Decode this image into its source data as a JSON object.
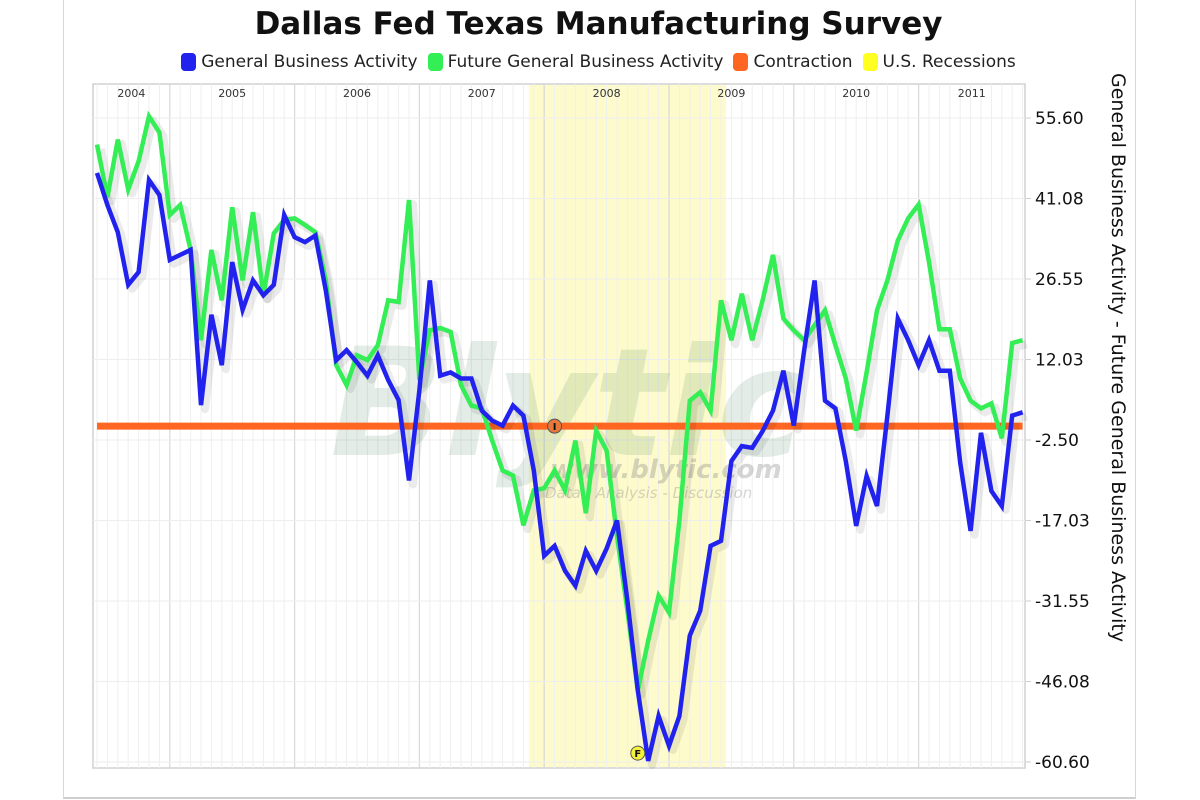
{
  "chart_data": {
    "type": "line",
    "title": "Dallas Fed Texas Manufacturing Survey",
    "ylabel": "General Business Activity  - Future General Business Activity",
    "xlabel": "",
    "ylim": [
      -60.6,
      55.6
    ],
    "y_ticks": [
      "55.60",
      "41.08",
      "26.55",
      "12.03",
      "-2.50",
      "-17.03",
      "-31.55",
      "-46.08",
      "-60.60"
    ],
    "y_tick_values": [
      55.6,
      41.08,
      26.55,
      12.03,
      -2.5,
      -17.03,
      -31.55,
      -46.08,
      -60.6
    ],
    "x_ticks": [
      "2004",
      "2005",
      "2006",
      "2007",
      "2008",
      "2009",
      "2010",
      "2011"
    ],
    "x_start": "2004-06",
    "x_frequency": "monthly",
    "grid": true,
    "legend_position": "top",
    "legend": [
      {
        "label": "General Business Activity",
        "color": "#2222ee"
      },
      {
        "label": "Future General Business Activity",
        "color": "#33ee55"
      },
      {
        "label": "Contraction",
        "color": "#ff6622"
      },
      {
        "label": "U.S. Recessions",
        "color": "#ffff22"
      }
    ],
    "series": [
      {
        "name": "General Business Activity",
        "color": "#2222ee",
        "values": [
          45.7,
          39.9,
          35.0,
          25.5,
          27.8,
          44.4,
          41.7,
          30.0,
          30.9,
          31.8,
          3.8,
          20.1,
          11.0,
          29.6,
          21.0,
          26.3,
          23.6,
          25.5,
          38.1,
          34.1,
          33.2,
          34.4,
          24.5,
          11.9,
          13.7,
          11.5,
          9.1,
          12.8,
          8.3,
          4.7,
          -9.8,
          6.5,
          26.3,
          9.1,
          9.7,
          8.6,
          8.6,
          2.8,
          1.0,
          0.1,
          3.7,
          1.9,
          -8.0,
          -23.4,
          -21.6,
          -26.1,
          -28.8,
          -22.5,
          -26.1,
          -22.1,
          -17.0,
          -31.5,
          -47.7,
          -60.4,
          -52.3,
          -57.7,
          -52.3,
          -37.8,
          -33.3,
          -21.6,
          -20.7,
          -6.3,
          -3.6,
          -3.9,
          -0.9,
          2.8,
          10.0,
          0.1,
          13.7,
          26.3,
          4.6,
          3.2,
          -6.3,
          -18.0,
          -9.0,
          -14.4,
          1.9,
          19.4,
          15.5,
          11.0,
          15.5,
          10.0,
          10.0,
          -6.6,
          -18.9,
          -1.2,
          -11.7,
          -14.4,
          1.9,
          2.5
        ]
      },
      {
        "name": "Future General Business Activity",
        "color": "#33ee55",
        "values": [
          50.8,
          41.3,
          51.7,
          42.7,
          47.8,
          55.9,
          53.0,
          38.1,
          39.9,
          31.8,
          15.5,
          31.8,
          22.7,
          39.5,
          26.3,
          38.6,
          23.6,
          34.8,
          37.2,
          37.5,
          36.3,
          35.0,
          26.3,
          11.0,
          7.4,
          12.8,
          11.9,
          14.6,
          22.7,
          22.4,
          40.8,
          8.3,
          17.3,
          17.7,
          17.0,
          7.4,
          3.7,
          3.2,
          -2.6,
          -8.0,
          -8.9,
          -17.9,
          -11.6,
          -11.2,
          -8.0,
          -11.6,
          -2.6,
          -15.7,
          -0.8,
          -4.4,
          -19.8,
          -33.3,
          -47.7,
          -38.7,
          -30.6,
          -33.6,
          -17.0,
          4.6,
          6.1,
          2.8,
          22.7,
          15.5,
          23.9,
          15.5,
          22.7,
          30.9,
          19.4,
          17.3,
          15.5,
          18.2,
          20.9,
          14.6,
          8.6,
          -0.8,
          9.7,
          20.9,
          26.3,
          33.5,
          37.5,
          40.0,
          29.6,
          17.5,
          17.5,
          8.6,
          4.6,
          3.2,
          4.1,
          -2.2,
          15.0,
          15.5
        ]
      },
      {
        "name": "Contraction",
        "color": "#ff6622",
        "values": [
          0
        ]
      }
    ],
    "recession_band": {
      "label": "U.S. Recessions",
      "start": "2007-12",
      "end": "2009-06",
      "color": "#ffff22"
    },
    "annotations": [
      {
        "label": "I",
        "date": "2008-02",
        "value": 0
      },
      {
        "label": "F",
        "date": "2008-10",
        "value": -59.0
      }
    ],
    "watermark": {
      "text": "Blytic",
      "url_text": "www.blytic.com",
      "tagline": "Data - Analysis - Discussion"
    }
  }
}
